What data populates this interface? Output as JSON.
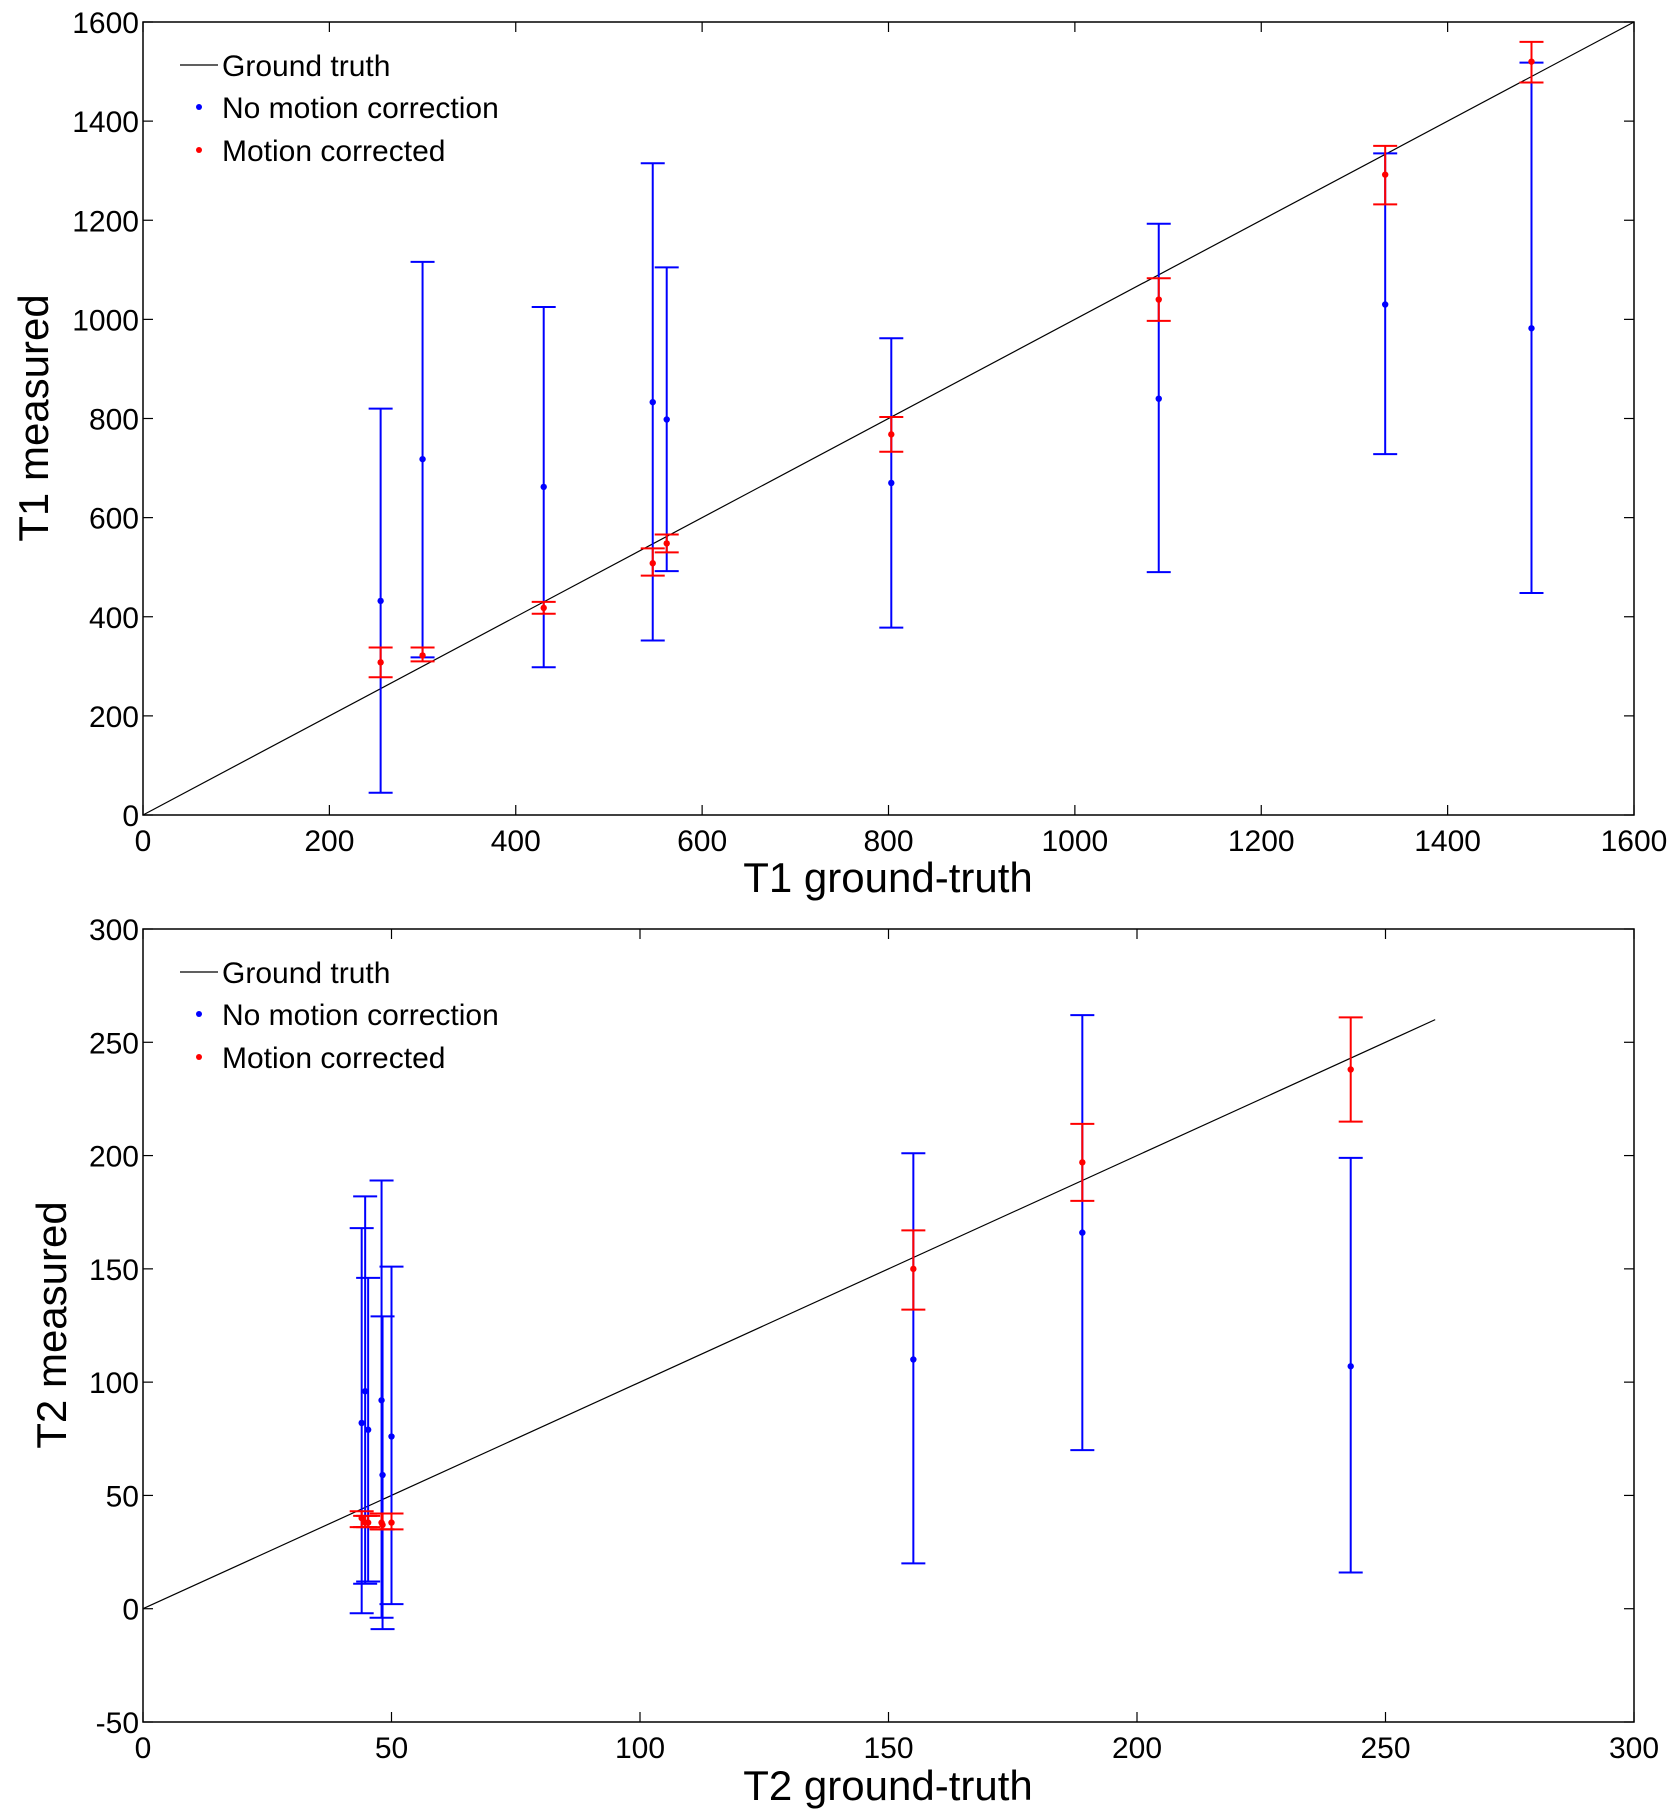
{
  "chart_data": [
    {
      "type": "scatter",
      "xlabel": "T1 ground-truth",
      "ylabel": "T1 measured",
      "xlim": [
        0,
        1600
      ],
      "ylim": [
        0,
        1600
      ],
      "xticks": [
        "0",
        "200",
        "400",
        "600",
        "800",
        "1000",
        "1200",
        "1400",
        "1600"
      ],
      "yticks": [
        "0",
        "200",
        "400",
        "600",
        "800",
        "1000",
        "1200",
        "1400",
        "1600"
      ],
      "legend": [
        "Ground truth",
        "No motion correction",
        "Motion corrected"
      ],
      "legend_position": "top-left",
      "reference_line": {
        "name": "Ground truth",
        "x": [
          0,
          1600
        ],
        "y": [
          0,
          1600
        ]
      },
      "series": [
        {
          "name": "No motion correction",
          "x": [
            255,
            300,
            430,
            547,
            562,
            803,
            1090,
            1333,
            1490
          ],
          "y": [
            432,
            718,
            662,
            833,
            798,
            670,
            840,
            1030,
            982
          ],
          "low": [
            45,
            318,
            298,
            352,
            492,
            378,
            490,
            728,
            448
          ],
          "high": [
            820,
            1116,
            1025,
            1315,
            1105,
            962,
            1193,
            1335,
            1518
          ]
        },
        {
          "name": "Motion corrected",
          "x": [
            255,
            300,
            430,
            547,
            562,
            803,
            1090,
            1333,
            1490
          ],
          "y": [
            308,
            322,
            418,
            508,
            548,
            768,
            1040,
            1292,
            1520
          ],
          "low": [
            278,
            310,
            406,
            483,
            530,
            733,
            997,
            1232,
            1478
          ],
          "high": [
            338,
            338,
            430,
            538,
            566,
            803,
            1083,
            1350,
            1560
          ]
        }
      ]
    },
    {
      "type": "scatter",
      "xlabel": "T2 ground-truth",
      "ylabel": "T2 measured",
      "xlim": [
        0,
        300
      ],
      "ylim": [
        -50,
        300
      ],
      "xticks": [
        "0",
        "50",
        "100",
        "150",
        "200",
        "250",
        "300"
      ],
      "yticks": [
        "-50",
        "0",
        "50",
        "100",
        "150",
        "200",
        "250",
        "300"
      ],
      "legend": [
        "Ground truth",
        "No motion correction",
        "Motion corrected"
      ],
      "legend_position": "top-left",
      "reference_line": {
        "name": "Ground truth",
        "x": [
          0,
          260
        ],
        "y": [
          0,
          260
        ]
      },
      "series": [
        {
          "name": "No motion correction",
          "x": [
            44,
            44.7,
            45.3,
            48,
            48.2,
            50,
            155,
            189,
            243
          ],
          "y": [
            82,
            96,
            79,
            92,
            59,
            76,
            110,
            166,
            107
          ],
          "low": [
            -2,
            11,
            12,
            -4,
            -9,
            2,
            20,
            70,
            16
          ],
          "high": [
            168,
            182,
            146,
            189,
            129,
            151,
            201,
            262,
            199
          ]
        },
        {
          "name": "Motion corrected",
          "x": [
            44,
            44.7,
            45.3,
            48,
            48.2,
            50,
            155,
            189,
            243
          ],
          "y": [
            40,
            38,
            38,
            38,
            37,
            38,
            150,
            197,
            238
          ],
          "low": [
            36,
            36,
            36,
            35,
            35,
            35,
            132,
            180,
            215
          ],
          "high": [
            43,
            41,
            41,
            42,
            42,
            42,
            167,
            214,
            261
          ]
        }
      ]
    }
  ]
}
